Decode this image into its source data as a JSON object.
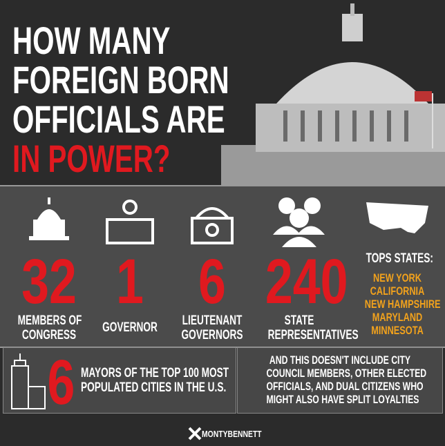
{
  "header": {
    "title_lines": [
      "HOW MANY",
      "FOREIGN BORN",
      "OFFICIALS ARE",
      "IN POWER?"
    ]
  },
  "stats": [
    {
      "number": 32,
      "label_lines": [
        "MEMBERS OF",
        "CONGRESS"
      ]
    },
    {
      "number": 1,
      "label_lines": [
        "GOVERNOR"
      ]
    },
    {
      "number": 6,
      "label_lines": [
        "LIEUTENANT",
        "GOVERNORS"
      ]
    },
    {
      "number": 240,
      "label_lines": [
        "STATE",
        "REPRESENTATIVES"
      ]
    }
  ],
  "top_states": {
    "heading": "TOPS STATES:",
    "states": [
      "NEW YORK",
      "CALIFORNIA",
      "NEW HAMPSHIRE",
      "MARYLAND",
      "MINNESOTA"
    ]
  },
  "mayors": {
    "number": 6,
    "label_lines": [
      "MAYORS OF THE TOP 100 MOST",
      "POPULATED CITIES IN THE U.S."
    ]
  },
  "note_lines": [
    "AND THIS DOESN'T INCLUDE CITY",
    "COUNCIL MEMBERS, OTHER ELECTED",
    "OFFICIALS, AND DUAL CITIZENS WHO",
    "MIGHT ALSO HAVE SPLIT LOYALTIES"
  ],
  "footer": {
    "brand": "MONTYBENNETT"
  }
}
